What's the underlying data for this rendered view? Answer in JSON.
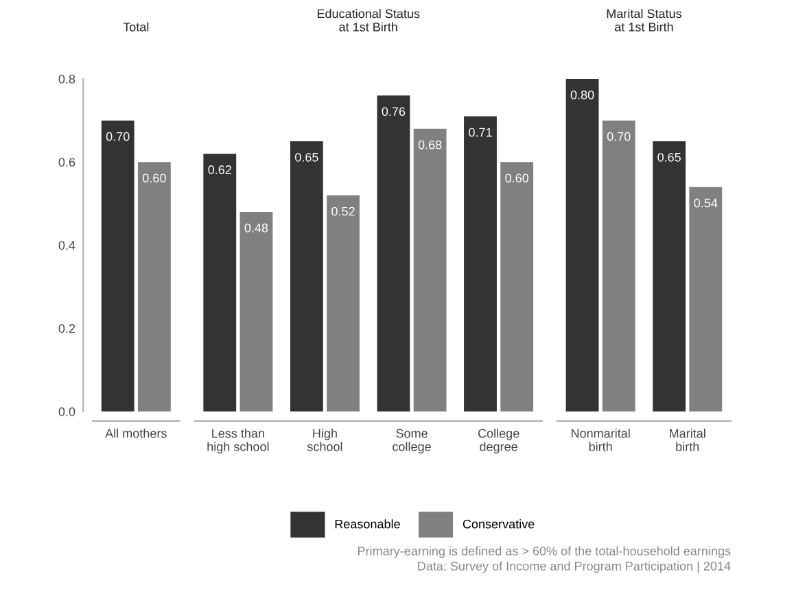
{
  "chart_data": [
    {
      "type": "bar",
      "title": "Total",
      "categories": [
        "All mothers"
      ],
      "series": [
        {
          "name": "Reasonable",
          "color": "#333333",
          "values": [
            0.7
          ],
          "value_labels": [
            "0.70"
          ]
        },
        {
          "name": "Conservative",
          "color": "#808083",
          "values": [
            0.6
          ],
          "value_labels": [
            "0.60"
          ]
        }
      ],
      "ylim": [
        0,
        0.8
      ],
      "yticks": [
        {
          "value": 0,
          "label": "0.0"
        },
        {
          "value": 0.2,
          "label": "0.2"
        },
        {
          "value": 0.4,
          "label": "0.4"
        },
        {
          "value": 0.6,
          "label": "0.6"
        },
        {
          "value": 0.8,
          "label": "0.8"
        }
      ],
      "legend": "bottom"
    },
    {
      "type": "bar",
      "title": "Educational Status\nat 1st Birth",
      "categories": [
        "Less than\nhigh school",
        "High\nschool",
        "Some\ncollege",
        "College\ndegree"
      ],
      "series": [
        {
          "color": "#333333",
          "values": [
            0.62,
            0.65,
            0.76,
            0.71
          ],
          "value_labels": [
            "0.62",
            "0.65",
            "0.76",
            "0.71"
          ]
        },
        {
          "color": "#808083",
          "values": [
            0.48,
            0.52,
            0.68,
            0.6
          ],
          "value_labels": [
            "0.48",
            "0.52",
            "0.68",
            "0.60"
          ]
        }
      ],
      "ylim": [
        0,
        0.8
      ],
      "tick_labels": "x"
    },
    {
      "type": "bar",
      "title": "Marital Status\nat 1st Birth",
      "categories": [
        "Nonmarital\nbirth",
        "Marital\nbirth"
      ],
      "series": [
        {
          "color": "#333333",
          "values": [
            0.8,
            0.65
          ],
          "value_labels": [
            "0.80",
            "0.65"
          ]
        },
        {
          "color": "#808083",
          "values": [
            0.7,
            0.54
          ],
          "value_labels": [
            "0.70",
            "0.54"
          ]
        }
      ],
      "ylim": [
        0,
        0.8
      ],
      "tick_labels": "x",
      "annotations": [
        "Primary-earning is defined as > 60% of the total-household earnings",
        "Data: Survey of Income and Program Participation | 2014"
      ]
    }
  ]
}
